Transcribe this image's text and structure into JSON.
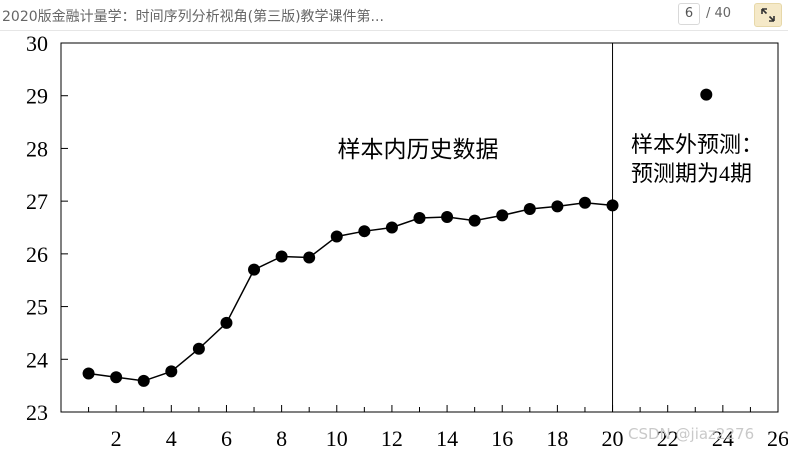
{
  "header": {
    "doc_title": "2020版金融计量学：时间序列分析视角(第三版)教学课件第...",
    "current_page": "6",
    "page_total": "/ 40"
  },
  "icons": {
    "expand": "expand-arrows-icon"
  },
  "colors": {
    "expand_bg": "#f5e9c8"
  },
  "annotations": {
    "in_sample": "样本内历史数据",
    "out_sample_line1": "样本外预测：",
    "out_sample_line2": "预测期为4期"
  },
  "watermark": "CSDN @jiaz2276",
  "chart_data": {
    "type": "scatter",
    "title": "",
    "xlabel": "",
    "ylabel": "",
    "xlim": [
      0,
      26
    ],
    "ylim": [
      23,
      30
    ],
    "x_tick_labels": [
      "2",
      "4",
      "6",
      "8",
      "10",
      "12",
      "14",
      "16",
      "18",
      "20",
      "22",
      "24",
      "26"
    ],
    "y_tick_labels": [
      "23",
      "24",
      "25",
      "26",
      "27",
      "28",
      "29",
      "30"
    ],
    "divider_x": 20,
    "series": [
      {
        "kind": "line-with-markers",
        "x": [
          1,
          2,
          3,
          4,
          5,
          6,
          7,
          8,
          9,
          10,
          11,
          12,
          13,
          14,
          15,
          16,
          17,
          18,
          19,
          20
        ],
        "y": [
          23.73,
          23.66,
          23.59,
          23.77,
          24.2,
          24.69,
          25.7,
          25.95,
          25.93,
          26.33,
          26.43,
          26.5,
          26.68,
          26.7,
          26.63,
          26.73,
          26.85,
          26.9,
          26.97,
          26.92
        ]
      },
      {
        "kind": "markers",
        "x": [
          23.4
        ],
        "y": [
          29.02
        ]
      }
    ]
  }
}
